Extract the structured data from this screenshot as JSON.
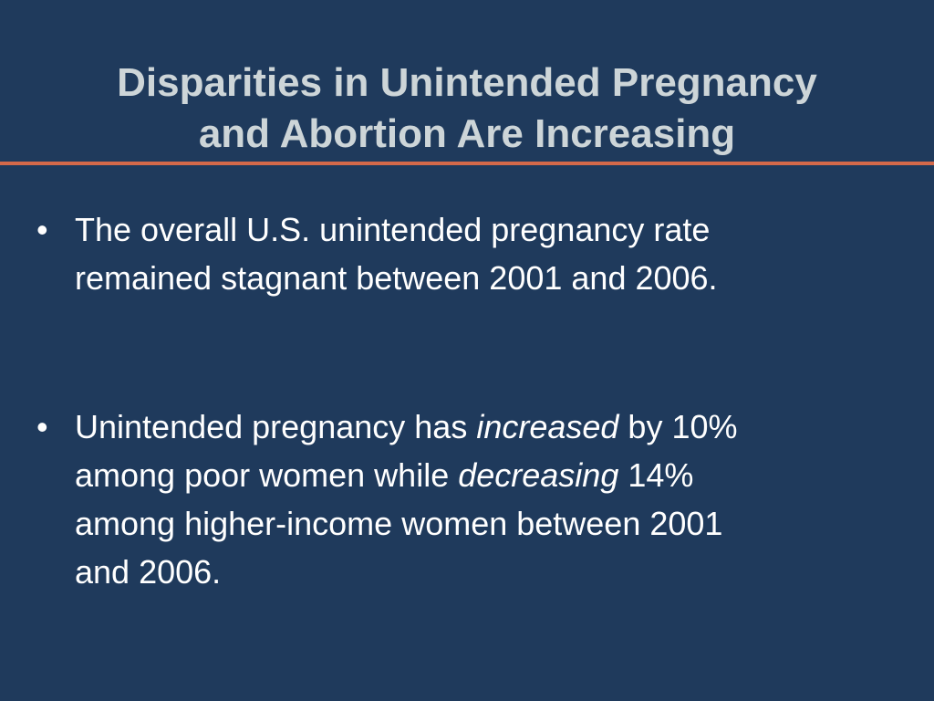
{
  "slide": {
    "title_lines": [
      "Disparities in Unintended Pregnancy",
      "and Abortion Are Increasing"
    ],
    "bullet_symbol": "•",
    "bullets": [
      {
        "lines": [
          "The overall U.S. unintended pregnancy rate",
          "remained stagnant between 2001 and 2006."
        ]
      },
      {
        "line1": {
          "before": "Unintended pregnancy has ",
          "emphasis": "increased",
          "after": " by 10%"
        },
        "line2": {
          "before": "among poor women while ",
          "emphasis": "decreasing",
          "after": " 14%"
        },
        "line3": "among higher-income women between 2001",
        "line4": "and 2006."
      }
    ],
    "colors": {
      "background": "#1f3a5c",
      "title": "#cdd5d8",
      "rule": "#d4694a",
      "body_text": "#ffffff"
    }
  }
}
